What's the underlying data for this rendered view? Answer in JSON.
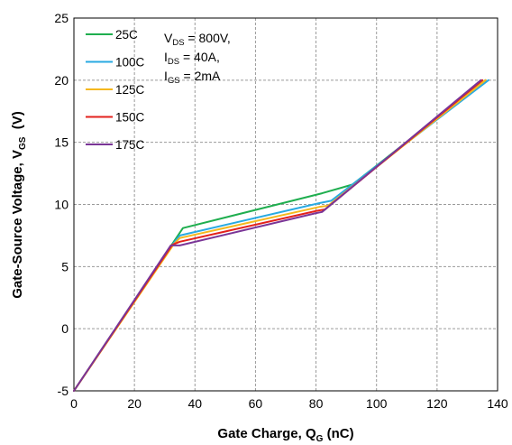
{
  "chart_data": {
    "type": "line",
    "title": "",
    "xlabel": "Gate Charge, Q",
    "xlabel_sub": "G",
    "xlabel_suffix": " (nC)",
    "ylabel": "Gate-Source Voltage, V",
    "ylabel_sub": "GS",
    "ylabel_suffix": "  (V)",
    "xlim": [
      0,
      140
    ],
    "ylim": [
      -5,
      25
    ],
    "xticks": [
      0,
      20,
      40,
      60,
      80,
      100,
      120,
      140
    ],
    "yticks": [
      -5,
      0,
      5,
      10,
      15,
      20,
      25
    ],
    "xtick_labels": [
      "0",
      "20",
      "40",
      "60",
      "80",
      "100",
      "120",
      "140"
    ],
    "ytick_labels": [
      "-5",
      "0",
      "5",
      "10",
      "15",
      "20",
      "25"
    ],
    "grid": true,
    "legend": "top-left",
    "annotation": [
      {
        "main": "V",
        "sub": "DS",
        "rest": " = 800V,"
      },
      {
        "main": "I",
        "sub": "DS",
        "rest": " = 40A,"
      },
      {
        "main": "I",
        "sub": "GS",
        "rest": " = 2mA"
      }
    ],
    "series": [
      {
        "name": "25C",
        "color": "#1fae4f",
        "x": [
          0,
          33,
          36,
          82,
          92,
          136
        ],
        "y": [
          -5,
          7.0,
          8.1,
          10.9,
          11.6,
          20.0
        ]
      },
      {
        "name": "100C",
        "color": "#29aae2",
        "x": [
          0,
          33,
          35,
          81,
          85,
          137
        ],
        "y": [
          -5,
          6.9,
          7.5,
          10.1,
          10.3,
          20.0
        ]
      },
      {
        "name": "125C",
        "color": "#f5b81e",
        "x": [
          0,
          33,
          35,
          81,
          84,
          136
        ],
        "y": [
          -5,
          6.8,
          7.3,
          9.8,
          9.9,
          20.0
        ]
      },
      {
        "name": "150C",
        "color": "#e3221c",
        "x": [
          0,
          32.5,
          35,
          80.5,
          83,
          135
        ],
        "y": [
          -5,
          6.75,
          7.0,
          9.5,
          9.6,
          20.0
        ]
      },
      {
        "name": "175C",
        "color": "#7a3597",
        "x": [
          0,
          32,
          35,
          80,
          82,
          134.5
        ],
        "y": [
          -5,
          6.7,
          6.7,
          9.3,
          9.4,
          20.0
        ]
      }
    ]
  }
}
